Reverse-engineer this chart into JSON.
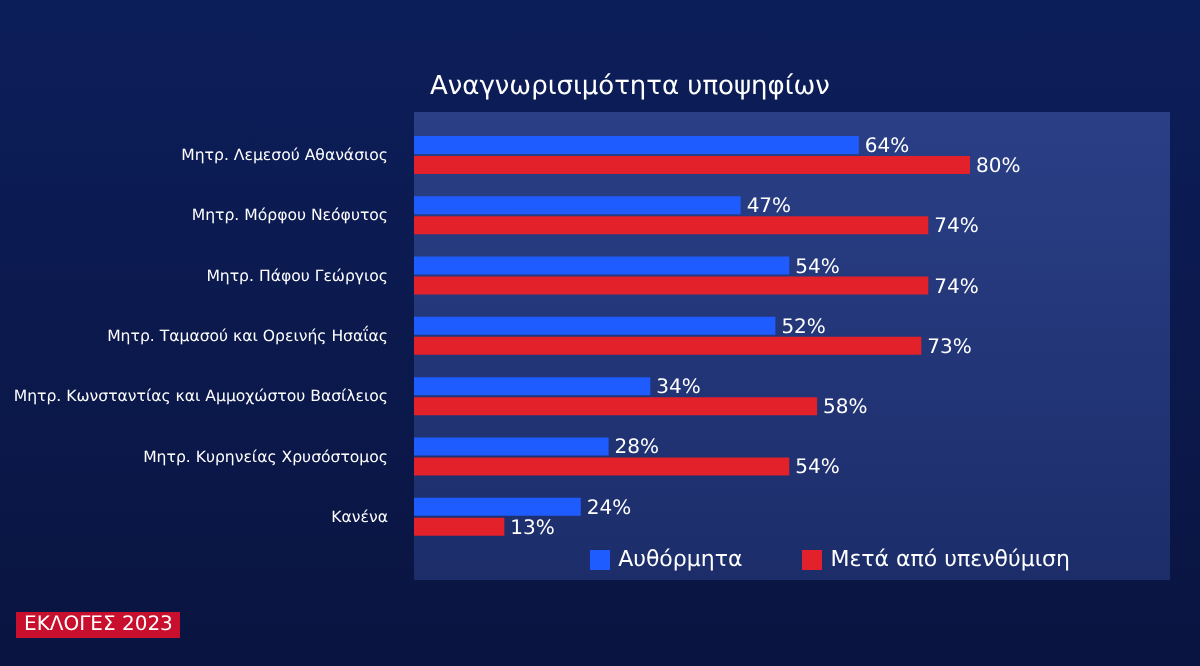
{
  "chart_data": {
    "type": "bar",
    "orientation": "horizontal",
    "title": "Αναγνωρισιμότητα υποψηφίων",
    "categories": [
      "Μητρ. Λεμεσού Αθανάσιος",
      "Μητρ. Μόρφου Νεόφυτος",
      "Μητρ. Πάφου Γεώργιος",
      "Μητρ. Ταμασού και Ορεινής Ησαΐας",
      "Μητρ. Κωνσταντίας και Αμμοχώστου Βασίλειος",
      "Μητρ. Κυρηνείας Χρυσόστομος",
      "Κανένα"
    ],
    "series": [
      {
        "name": "Αυθόρμητα",
        "color": "#1f5cff",
        "values": [
          64,
          47,
          54,
          52,
          34,
          28,
          24
        ],
        "value_labels": [
          "64%",
          "47%",
          "54%",
          "52%",
          "34%",
          "28%",
          "24%"
        ]
      },
      {
        "name": "Μετά από υπενθύμιση",
        "color": "#e3212b",
        "values": [
          80,
          74,
          74,
          73,
          58,
          54,
          13
        ],
        "value_labels": [
          "80%",
          "74%",
          "74%",
          "73%",
          "58%",
          "54%",
          "13%"
        ]
      }
    ],
    "tick_labels": "y",
    "legend": "bottom right",
    "annotations": [
      "ΕΚΛΟΓΕΣ 2023"
    ]
  }
}
